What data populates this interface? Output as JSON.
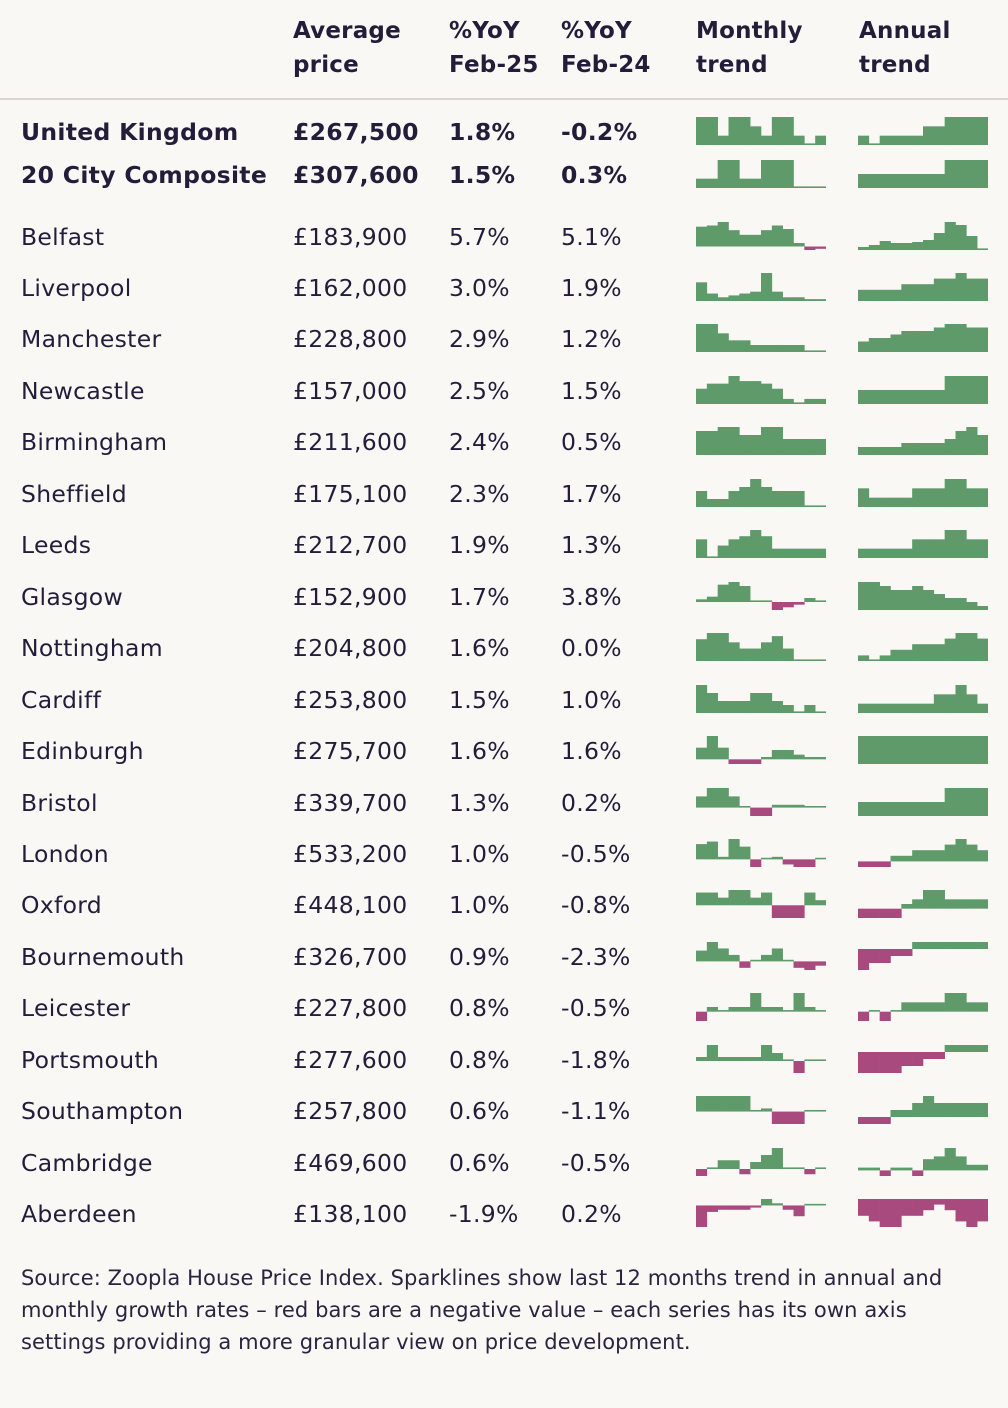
{
  "colors": {
    "positive": "#5e9a6a",
    "negative": "#a94a7e",
    "text": "#231d3a"
  },
  "header": {
    "avg_l1": "Average",
    "avg_l2": "price",
    "y25_l1": "%YoY",
    "y25_l2": "Feb-25",
    "y24_l1": "%YoY",
    "y24_l2": "Feb-24",
    "mon_l1": "Monthly",
    "mon_l2": "trend",
    "ann_l1": "Annual",
    "ann_l2": "trend"
  },
  "rows": [
    {
      "name": "United Kingdom",
      "price": "£267,500",
      "yoy25": "1.8%",
      "yoy24": "-0.2%",
      "bold": true,
      "monthly": [
        3,
        3,
        1,
        3,
        3,
        2,
        1,
        3,
        3,
        1,
        0,
        1
      ],
      "annual": [
        1,
        0,
        1,
        1,
        1,
        1,
        2,
        2,
        3,
        3,
        3,
        3
      ]
    },
    {
      "name": "20 City Composite",
      "price": "£307,600",
      "yoy25": "1.5%",
      "yoy24": "0.3%",
      "bold": true,
      "monthly": [
        1,
        1,
        3,
        3,
        1,
        1,
        3,
        3,
        3,
        0,
        0,
        0
      ],
      "annual": [
        1,
        1,
        1,
        1,
        1,
        1,
        1,
        1,
        2,
        2,
        2,
        2
      ]
    },
    {
      "name": "Belfast",
      "price": "£183,900",
      "yoy25": "5.7%",
      "yoy24": "5.1%",
      "bold": false,
      "monthly": [
        17,
        18,
        21,
        14,
        10,
        10,
        14,
        18,
        15,
        3,
        -3,
        -2
      ],
      "annual": [
        3,
        5,
        9,
        7,
        7,
        8,
        10,
        17,
        28,
        25,
        14,
        1
      ]
    },
    {
      "name": "Liverpool",
      "price": "£162,000",
      "yoy25": "3.0%",
      "yoy24": "1.9%",
      "bold": false,
      "monthly": [
        10,
        4,
        2,
        3,
        4,
        5,
        15,
        5,
        2,
        2,
        1,
        1
      ],
      "annual": [
        2,
        2,
        2,
        2,
        3,
        3,
        3,
        4,
        4,
        5,
        4,
        4
      ]
    },
    {
      "name": "Manchester",
      "price": "£228,800",
      "yoy25": "2.9%",
      "yoy24": "1.2%",
      "bold": false,
      "monthly": [
        12,
        12,
        8,
        5,
        5,
        3,
        3,
        3,
        3,
        3,
        0,
        0
      ],
      "annual": [
        3,
        4,
        4,
        5,
        6,
        6,
        6,
        7,
        8,
        8,
        7,
        7
      ]
    },
    {
      "name": "Newcastle",
      "price": "£157,000",
      "yoy25": "2.5%",
      "yoy24": "1.5%",
      "bold": false,
      "monthly": [
        6,
        8,
        8,
        11,
        9,
        9,
        8,
        6,
        2,
        0,
        2,
        2
      ],
      "annual": [
        1,
        1,
        1,
        1,
        1,
        1,
        1,
        1,
        2,
        2,
        2,
        2
      ]
    },
    {
      "name": "Birmingham",
      "price": "£211,600",
      "yoy25": "2.4%",
      "yoy24": "0.5%",
      "bold": false,
      "monthly": [
        6,
        6,
        7,
        7,
        5,
        5,
        7,
        7,
        4,
        4,
        4,
        4
      ],
      "annual": [
        2,
        2,
        2,
        2,
        3,
        3,
        3,
        3,
        4,
        6,
        7,
        5
      ]
    },
    {
      "name": "Sheffield",
      "price": "£175,100",
      "yoy25": "2.3%",
      "yoy24": "1.7%",
      "bold": false,
      "monthly": [
        8,
        4,
        4,
        8,
        10,
        14,
        10,
        8,
        8,
        8,
        0,
        0
      ],
      "annual": [
        2,
        1,
        1,
        1,
        1,
        2,
        2,
        2,
        3,
        3,
        2,
        2
      ]
    },
    {
      "name": "Leeds",
      "price": "£212,700",
      "yoy25": "1.9%",
      "yoy24": "1.3%",
      "bold": false,
      "monthly": [
        6,
        0,
        4,
        6,
        7,
        9,
        7,
        3,
        3,
        3,
        3,
        3
      ],
      "annual": [
        1,
        1,
        1,
        1,
        1,
        2,
        2,
        2,
        3,
        3,
        2,
        2
      ]
    },
    {
      "name": "Glasgow",
      "price": "£152,900",
      "yoy25": "1.7%",
      "yoy24": "3.8%",
      "bold": false,
      "monthly": [
        2,
        4,
        13,
        15,
        12,
        0,
        0,
        -6,
        -4,
        -2,
        3,
        1
      ],
      "annual": [
        7,
        7,
        6,
        5,
        5,
        6,
        5,
        4,
        3,
        3,
        2,
        1
      ]
    },
    {
      "name": "Nottingham",
      "price": "£204,800",
      "yoy25": "1.6%",
      "yoy24": "0.0%",
      "bold": false,
      "monthly": [
        7,
        9,
        9,
        6,
        4,
        4,
        6,
        8,
        4,
        0,
        0,
        0
      ],
      "annual": [
        1,
        0,
        1,
        2,
        2,
        3,
        3,
        3,
        4,
        5,
        5,
        4
      ]
    },
    {
      "name": "Cardiff",
      "price": "£253,800",
      "yoy25": "1.5%",
      "yoy24": "1.0%",
      "bold": false,
      "monthly": [
        7,
        5,
        3,
        3,
        3,
        5,
        5,
        3,
        2,
        0,
        2,
        0
      ],
      "annual": [
        1,
        1,
        1,
        1,
        1,
        1,
        1,
        2,
        2,
        3,
        2,
        1
      ]
    },
    {
      "name": "Edinburgh",
      "price": "£275,700",
      "yoy25": "1.6%",
      "yoy24": "1.6%",
      "bold": false,
      "monthly": [
        5,
        10,
        5,
        -2,
        -2,
        -2,
        1,
        4,
        4,
        2,
        1,
        1
      ],
      "annual": [
        1,
        1,
        1,
        1,
        1,
        1,
        1,
        1,
        1,
        1,
        1,
        1
      ]
    },
    {
      "name": "Bristol",
      "price": "£339,700",
      "yoy25": "1.3%",
      "yoy24": "0.2%",
      "bold": false,
      "monthly": [
        4,
        7,
        7,
        4,
        0,
        -3,
        -3,
        1,
        1,
        1,
        0,
        0
      ],
      "annual": [
        1,
        1,
        1,
        1,
        1,
        1,
        1,
        1,
        2,
        2,
        2,
        2
      ]
    },
    {
      "name": "London",
      "price": "£533,200",
      "yoy25": "1.0%",
      "yoy24": "-0.5%",
      "bold": false,
      "monthly": [
        6,
        7,
        1,
        8,
        5,
        -3,
        0,
        1,
        -2,
        -3,
        -3,
        0
      ],
      "annual": [
        -1,
        -1,
        -1,
        1,
        1,
        2,
        2,
        2,
        3,
        4,
        3,
        2
      ]
    },
    {
      "name": "Oxford",
      "price": "£448,100",
      "yoy25": "1.0%",
      "yoy24": "-0.8%",
      "bold": false,
      "monthly": [
        5,
        5,
        3,
        6,
        6,
        3,
        5,
        -5,
        -5,
        -5,
        5,
        2
      ],
      "annual": [
        -2,
        -2,
        -2,
        -2,
        1,
        2,
        4,
        4,
        2,
        2,
        2,
        2
      ]
    },
    {
      "name": "Bournemouth",
      "price": "£326,700",
      "yoy25": "0.9%",
      "yoy24": "-2.3%",
      "bold": false,
      "monthly": [
        5,
        9,
        6,
        3,
        -3,
        0,
        3,
        6,
        0,
        -3,
        -4,
        -2
      ],
      "annual": [
        -3,
        -2,
        -2,
        -1,
        -1,
        1,
        1,
        1,
        1,
        1,
        1,
        1
      ]
    },
    {
      "name": "Leicester",
      "price": "£227,800",
      "yoy25": "0.8%",
      "yoy24": "-0.5%",
      "bold": false,
      "monthly": [
        -2,
        1,
        0,
        1,
        1,
        4,
        1,
        1,
        0,
        4,
        1,
        0
      ],
      "annual": [
        -1,
        0,
        -1,
        0,
        1,
        1,
        1,
        1,
        2,
        2,
        1,
        1
      ]
    },
    {
      "name": "Portsmouth",
      "price": "£277,600",
      "yoy25": "0.8%",
      "yoy24": "-1.8%",
      "bold": false,
      "monthly": [
        1,
        4,
        1,
        1,
        1,
        1,
        4,
        2,
        0,
        -3,
        0,
        0
      ],
      "annual": [
        -3,
        -3,
        -3,
        -3,
        -2,
        -2,
        -1,
        -1,
        1,
        1,
        1,
        1
      ]
    },
    {
      "name": "Southampton",
      "price": "£257,800",
      "yoy25": "0.6%",
      "yoy24": "-1.1%",
      "bold": false,
      "monthly": [
        5,
        5,
        5,
        5,
        5,
        0,
        1,
        -4,
        -4,
        -4,
        0,
        0
      ],
      "annual": [
        -1,
        -1,
        -1,
        1,
        1,
        2,
        3,
        2,
        2,
        2,
        2,
        2
      ]
    },
    {
      "name": "Cambridge",
      "price": "£469,600",
      "yoy25": "0.6%",
      "yoy24": "-0.5%",
      "bold": false,
      "monthly": [
        -4,
        0,
        5,
        5,
        -3,
        4,
        8,
        12,
        0,
        0,
        -3,
        0
      ],
      "annual": [
        1,
        1,
        -2,
        1,
        1,
        -2,
        4,
        5,
        8,
        5,
        2,
        2
      ]
    },
    {
      "name": "Aberdeen",
      "price": "£138,100",
      "yoy25": "-1.9%",
      "yoy24": "0.2%",
      "bold": false,
      "monthly": [
        -10,
        -3,
        -2,
        -2,
        -2,
        -1,
        3,
        1,
        -2,
        -5,
        0,
        0
      ],
      "annual": [
        -3,
        -4,
        -5,
        -5,
        -3,
        -3,
        -2,
        -1,
        -2,
        -4,
        -5,
        -4
      ]
    }
  ],
  "note": "Source: Zoopla House Price Index. Sparklines show last 12 months trend in annual and monthly growth rates – red bars are a negative value – each series has its own axis settings providing a more granular view on price development."
}
